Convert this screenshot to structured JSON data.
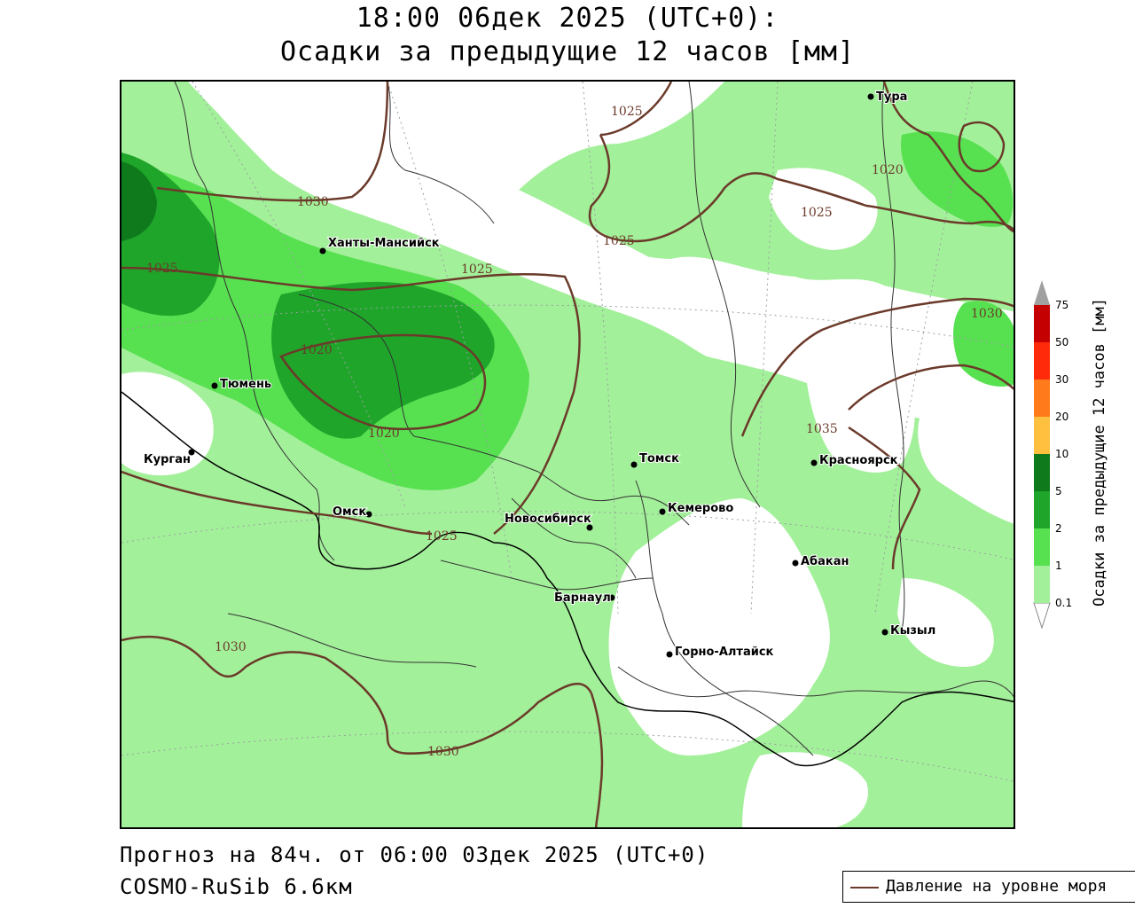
{
  "title": {
    "line1": "18:00 06дек 2025 (UTC+0):",
    "line2": "Осадки за предыдущие 12 часов [мм]"
  },
  "footer": {
    "forecast": "Прогноз на 84ч. от 06:00 03дек 2025 (UTC+0)",
    "model": "COSMO-RuSib 6.6км"
  },
  "legend": {
    "pressure_label": "Давление на уровне моря",
    "pressure_color": "#6b3a2a"
  },
  "colorbar": {
    "title": "Осадки за предыдущие 12 часов [мм]",
    "levels": [
      "0.1",
      "1",
      "2",
      "5",
      "10",
      "20",
      "30",
      "50",
      "75"
    ],
    "colors": [
      "#ffffff",
      "#a3f09a",
      "#57e050",
      "#1fa52a",
      "#0e7a1c",
      "#ffc040",
      "#ff7a1a",
      "#ff2a0a",
      "#c40000",
      "#8a0000",
      "#a0a0a0"
    ]
  },
  "cities": [
    {
      "name": "Тура"
    },
    {
      "name": "Ханты-Мансийск"
    },
    {
      "name": "Тюмень"
    },
    {
      "name": "Курган"
    },
    {
      "name": "Омск"
    },
    {
      "name": "Томск"
    },
    {
      "name": "Красноярск"
    },
    {
      "name": "Кемерово"
    },
    {
      "name": "Новосибирск"
    },
    {
      "name": "Абакан"
    },
    {
      "name": "Барнаул"
    },
    {
      "name": "Кызыл"
    },
    {
      "name": "Горно-Алтайск"
    }
  ],
  "isobars": [
    {
      "label": "1025"
    },
    {
      "label": "1030"
    },
    {
      "label": "1020"
    },
    {
      "label": "1025"
    },
    {
      "label": "1025"
    },
    {
      "label": "1020"
    },
    {
      "label": "1020"
    },
    {
      "label": "1025"
    },
    {
      "label": "1025"
    },
    {
      "label": "1030"
    },
    {
      "label": "1035"
    },
    {
      "label": "1025"
    },
    {
      "label": "1030"
    },
    {
      "label": "1030"
    }
  ]
}
